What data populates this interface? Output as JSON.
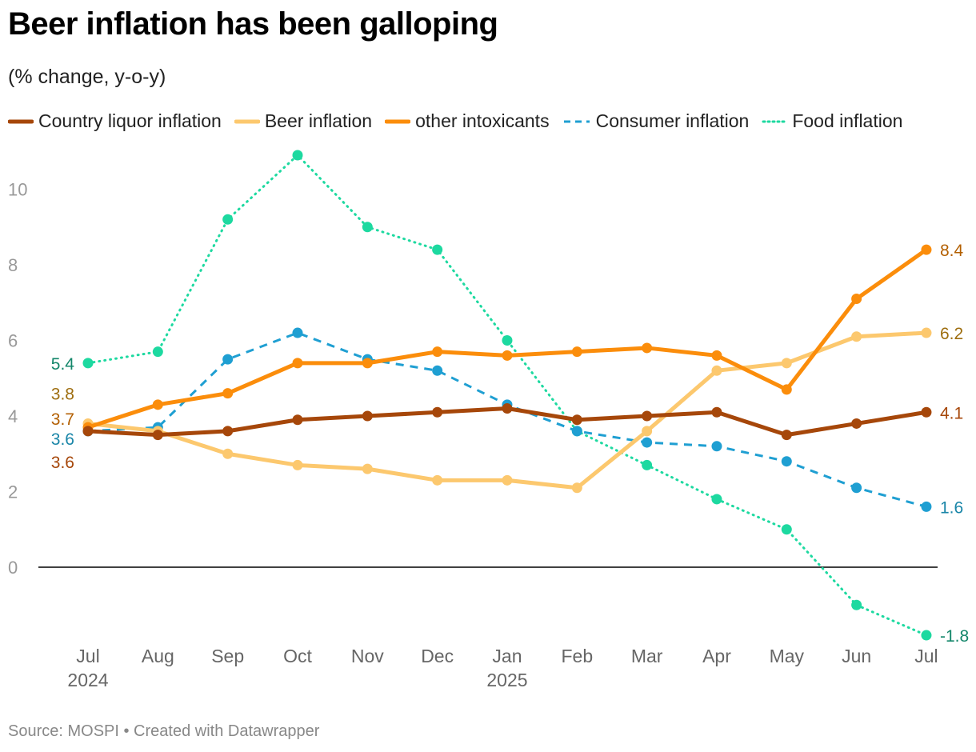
{
  "title": "Beer inflation has been galloping",
  "subtitle": "(% change, y-o-y)",
  "source": "Source: MOSPI • Created with Datawrapper",
  "chart_data": {
    "type": "line",
    "title": "Beer inflation has been galloping",
    "subtitle": "(% change, y-o-y)",
    "xlabel": "",
    "ylabel": "",
    "ylim": [
      -2,
      11
    ],
    "yticks": [
      "0",
      "2",
      "4",
      "6",
      "8",
      "10"
    ],
    "ytick_values": [
      0,
      2,
      4,
      6,
      8,
      10
    ],
    "categories": [
      "Jul",
      "Aug",
      "Sep",
      "Oct",
      "Nov",
      "Dec",
      "Jan",
      "Feb",
      "Mar",
      "Apr",
      "May",
      "Jun",
      "Jul"
    ],
    "year_labels": [
      {
        "index": 0,
        "label": "2024"
      },
      {
        "index": 6,
        "label": "2025"
      }
    ],
    "legend_position": "top-left",
    "series": [
      {
        "name": "Food inflation",
        "color": "#1dd9a0",
        "style": "dotted",
        "values": [
          5.4,
          5.7,
          9.2,
          10.9,
          9.0,
          8.4,
          6.0,
          3.6,
          2.7,
          1.8,
          1.0,
          -1.0,
          -1.8
        ],
        "start_label": "5.4",
        "end_label": "-1.8",
        "label_color": "#13866a"
      },
      {
        "name": "Consumer inflation",
        "color": "#1f9fd2",
        "style": "dashed",
        "values": [
          3.6,
          3.7,
          5.5,
          6.2,
          5.5,
          5.2,
          4.3,
          3.6,
          3.3,
          3.2,
          2.8,
          2.1,
          1.6
        ],
        "start_label": "3.6",
        "end_label": "1.6",
        "label_color": "#1a86a8"
      },
      {
        "name": "Beer inflation",
        "color": "#fcc86e",
        "style": "solid",
        "values": [
          3.8,
          3.6,
          3.0,
          2.7,
          2.6,
          2.3,
          2.3,
          2.1,
          3.6,
          5.2,
          5.4,
          6.1,
          6.2
        ],
        "start_label": "3.8",
        "end_label": "6.2",
        "label_color": "#9e6e10"
      },
      {
        "name": "other intoxicants",
        "color": "#fb8d0b",
        "style": "solid",
        "values": [
          3.7,
          4.3,
          4.6,
          5.4,
          5.4,
          5.7,
          5.6,
          5.7,
          5.8,
          5.6,
          4.7,
          7.1,
          8.4
        ],
        "start_label": "3.7",
        "end_label": "8.4",
        "label_color": "#b35f00"
      },
      {
        "name": "Country liquor inflation",
        "color": "#a6470a",
        "style": "solid",
        "values": [
          3.6,
          3.5,
          3.6,
          3.9,
          4.0,
          4.1,
          4.2,
          3.9,
          4.0,
          4.1,
          3.5,
          3.8,
          4.1
        ],
        "start_label": "3.6",
        "end_label": "4.1",
        "label_color": "#a6470a"
      }
    ]
  },
  "legend": [
    {
      "name": "Country liquor inflation",
      "color": "#a6470a",
      "style": "solid"
    },
    {
      "name": "Beer inflation",
      "color": "#fcc86e",
      "style": "solid"
    },
    {
      "name": "other intoxicants",
      "color": "#fb8d0b",
      "style": "solid"
    },
    {
      "name": "Consumer inflation",
      "color": "#1f9fd2",
      "style": "dashed"
    },
    {
      "name": "Food inflation",
      "color": "#1dd9a0",
      "style": "dotted"
    }
  ]
}
